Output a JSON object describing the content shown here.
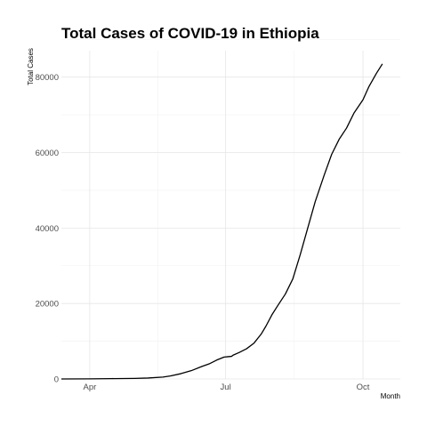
{
  "chart_data": {
    "type": "line",
    "title": "Total Cases of COVID-19 in Ethiopia",
    "xlabel": "Month",
    "ylabel": "Total Cases",
    "x_axis_type": "date",
    "xlim": [
      "2020-03-13",
      "2020-10-26"
    ],
    "ylim": [
      0,
      87000
    ],
    "x_ticks": [
      {
        "date": "2020-04-01",
        "label": "Apr"
      },
      {
        "date": "2020-07-01",
        "label": "Jul"
      },
      {
        "date": "2020-10-01",
        "label": "Oct"
      }
    ],
    "y_ticks": [
      0,
      20000,
      40000,
      60000,
      80000
    ],
    "y_tick_labels": [
      "0",
      "20000",
      "40000",
      "60000",
      "80000"
    ],
    "grid": true,
    "legend": "none",
    "series": [
      {
        "color": "#000000",
        "points": [
          {
            "x": "2020-03-13",
            "y": 0
          },
          {
            "x": "2020-04-01",
            "y": 30
          },
          {
            "x": "2020-04-15",
            "y": 90
          },
          {
            "x": "2020-05-01",
            "y": 150
          },
          {
            "x": "2020-05-10",
            "y": 250
          },
          {
            "x": "2020-05-20",
            "y": 500
          },
          {
            "x": "2020-05-25",
            "y": 800
          },
          {
            "x": "2020-06-01",
            "y": 1400
          },
          {
            "x": "2020-06-08",
            "y": 2200
          },
          {
            "x": "2020-06-15",
            "y": 3300
          },
          {
            "x": "2020-06-20",
            "y": 4000
          },
          {
            "x": "2020-06-25",
            "y": 5000
          },
          {
            "x": "2020-06-30",
            "y": 5800
          },
          {
            "x": "2020-07-05",
            "y": 6000
          },
          {
            "x": "2020-07-06",
            "y": 6300
          },
          {
            "x": "2020-07-10",
            "y": 7000
          },
          {
            "x": "2020-07-15",
            "y": 8000
          },
          {
            "x": "2020-07-20",
            "y": 9500
          },
          {
            "x": "2020-07-25",
            "y": 12000
          },
          {
            "x": "2020-07-28",
            "y": 14000
          },
          {
            "x": "2020-08-01",
            "y": 17000
          },
          {
            "x": "2020-08-05",
            "y": 19500
          },
          {
            "x": "2020-08-10",
            "y": 22500
          },
          {
            "x": "2020-08-15",
            "y": 26500
          },
          {
            "x": "2020-08-20",
            "y": 33000
          },
          {
            "x": "2020-08-25",
            "y": 40000
          },
          {
            "x": "2020-08-30",
            "y": 47000
          },
          {
            "x": "2020-09-05",
            "y": 54000
          },
          {
            "x": "2020-09-10",
            "y": 59500
          },
          {
            "x": "2020-09-15",
            "y": 63500
          },
          {
            "x": "2020-09-20",
            "y": 66500
          },
          {
            "x": "2020-09-25",
            "y": 70500
          },
          {
            "x": "2020-10-01",
            "y": 74000
          },
          {
            "x": "2020-10-05",
            "y": 77500
          },
          {
            "x": "2020-10-10",
            "y": 81000
          },
          {
            "x": "2020-10-14",
            "y": 83500
          }
        ]
      }
    ]
  }
}
